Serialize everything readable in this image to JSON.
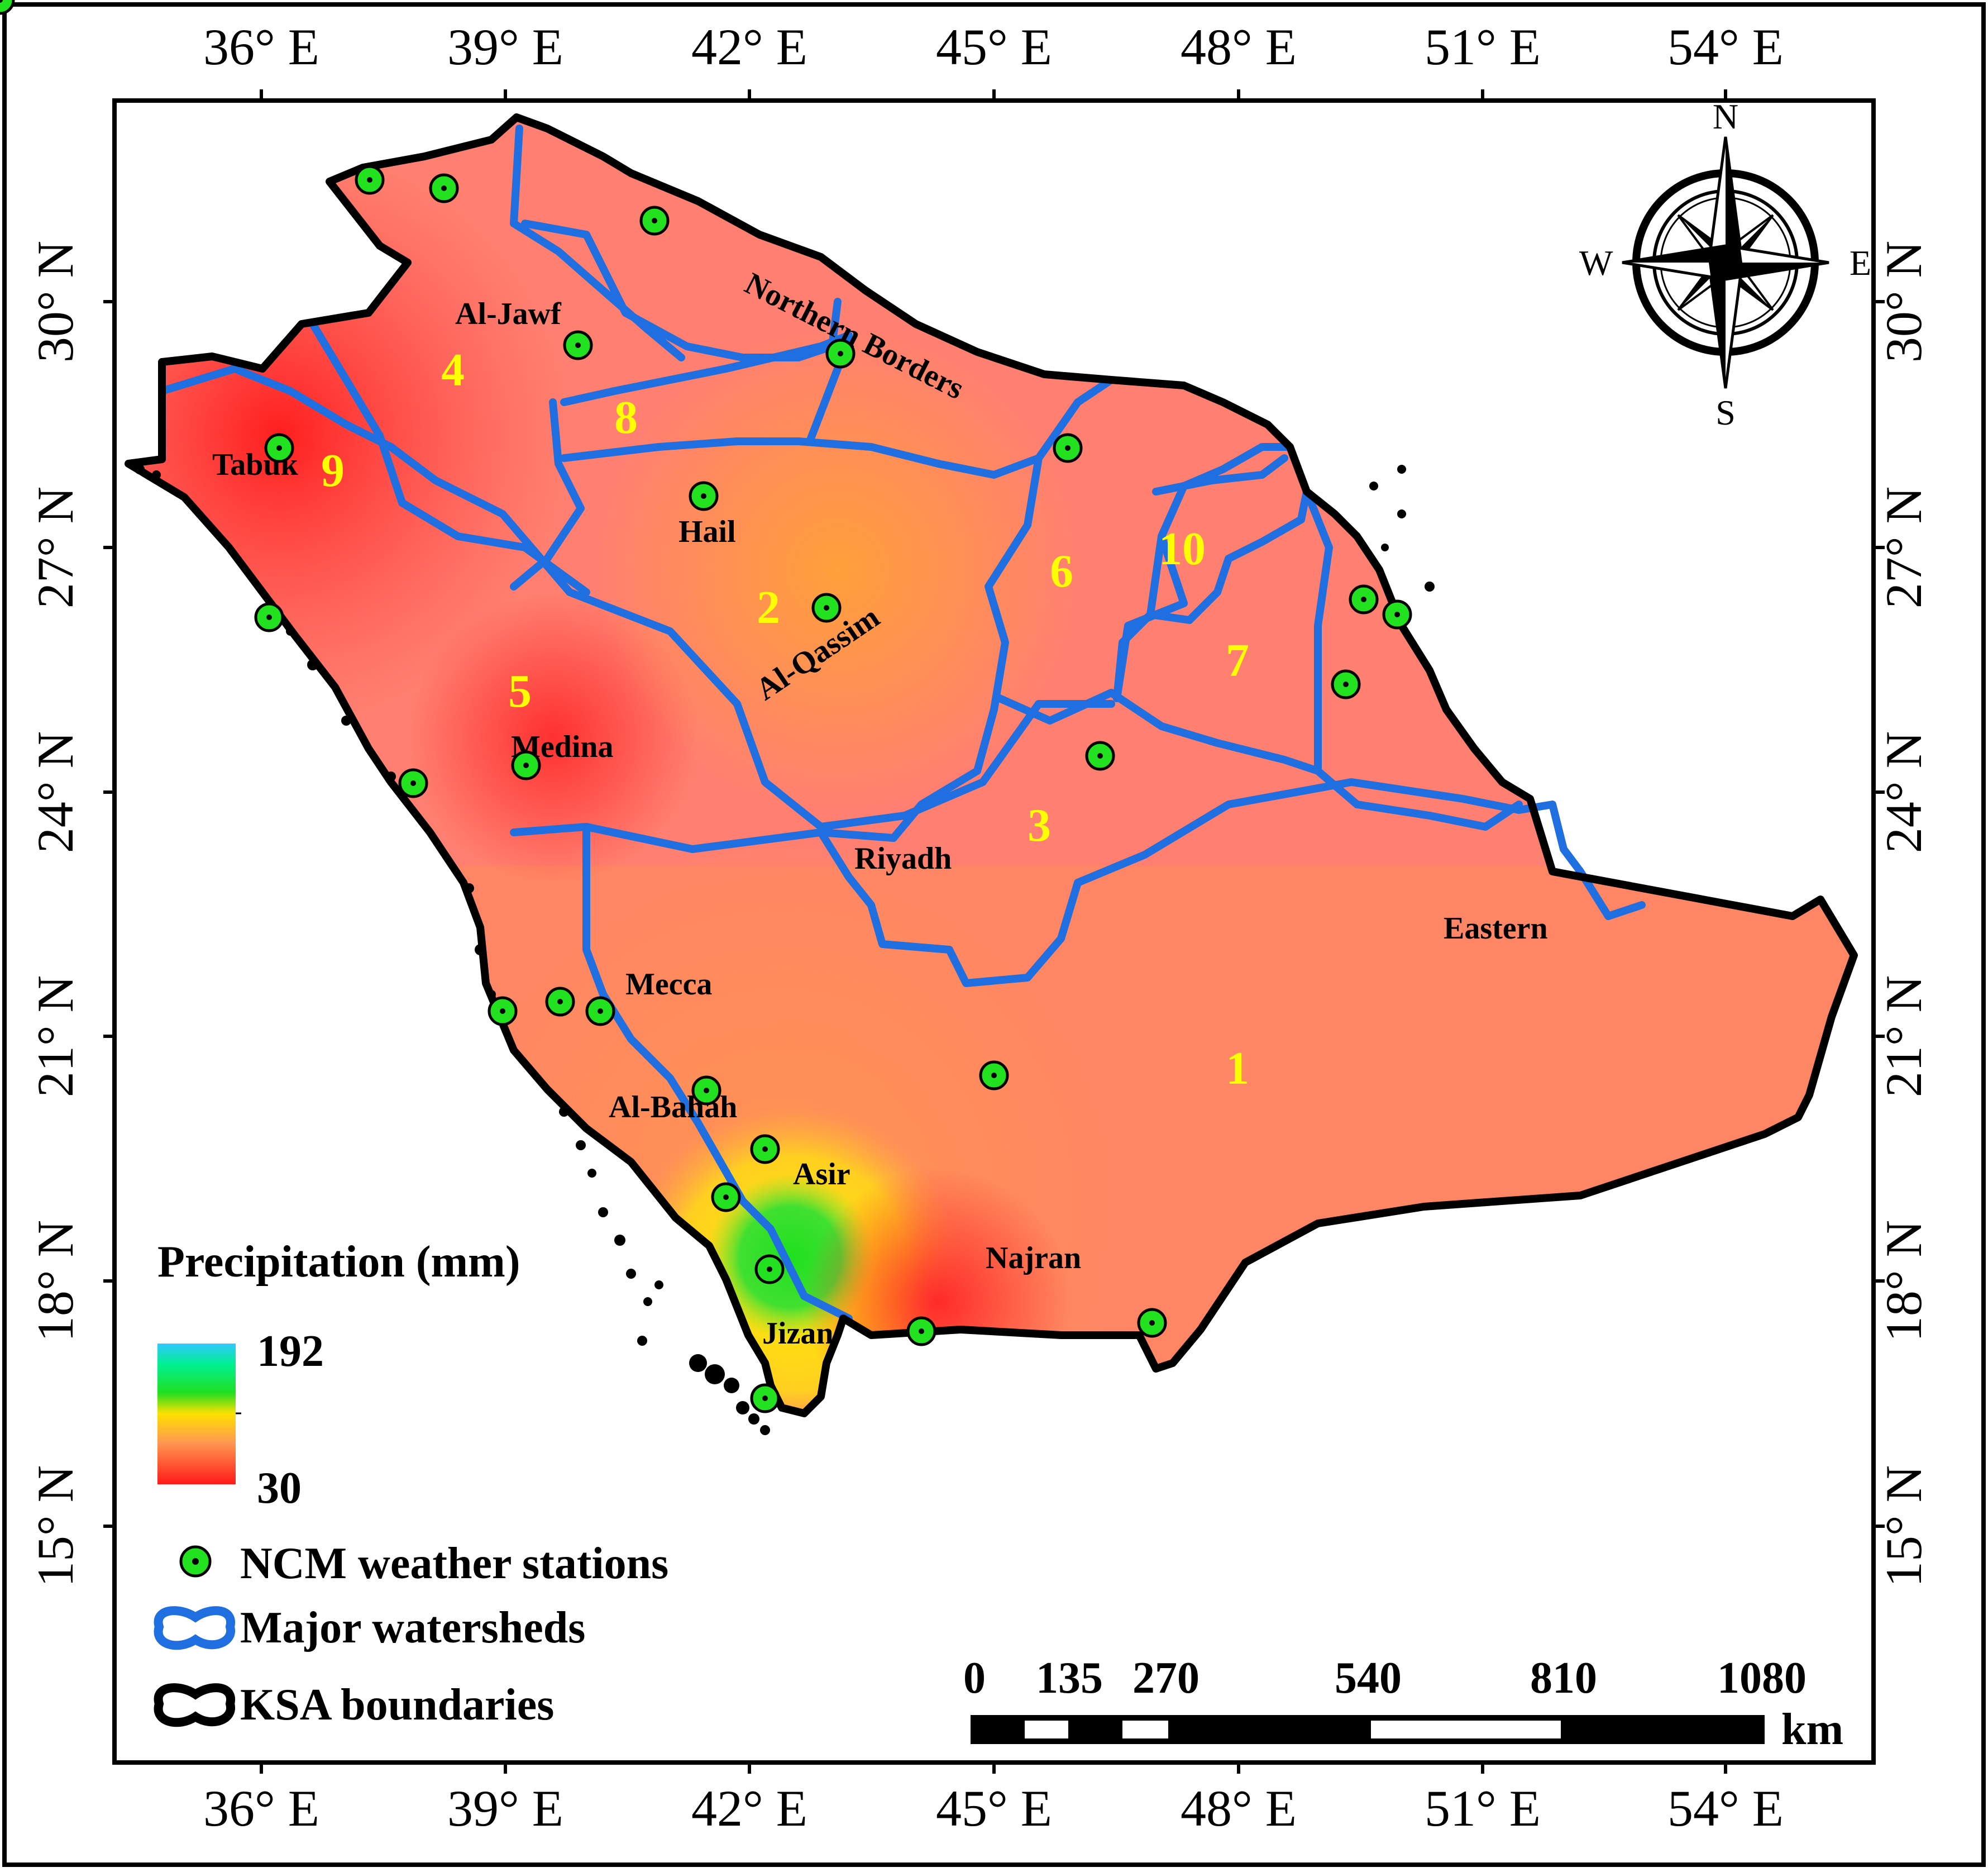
{
  "map": {
    "lon_ticks": [
      "36° E",
      "39° E",
      "42° E",
      "45° E",
      "48° E",
      "51° E",
      "54° E"
    ],
    "lat_ticks": [
      "30° N",
      "27° N",
      "24° N",
      "21° N",
      "18° N",
      "15° N"
    ],
    "regions": [
      "Al-Jawf",
      "Northern Borders",
      "Tabuk",
      "Hail",
      "Al-Qassim",
      "Medina",
      "Riyadh",
      "Eastern",
      "Mecca",
      "Al-Bahah",
      "Asir",
      "Najran",
      "Jizan"
    ],
    "watershed_numbers": [
      "1",
      "2",
      "3",
      "4",
      "5",
      "6",
      "7",
      "8",
      "9",
      "10"
    ],
    "compass": {
      "n": "N",
      "s": "S",
      "e": "E",
      "w": "W"
    }
  },
  "legend": {
    "title": "Precipitation (mm)",
    "max": "192",
    "min": "30",
    "stations": "NCM weather stations",
    "watersheds": "Major watersheds",
    "boundaries": "KSA boundaries"
  },
  "scalebar": {
    "labels": [
      "0",
      "135",
      "270",
      "540",
      "810",
      "1080"
    ],
    "unit": "km"
  },
  "colors": {
    "boundary": "#000000",
    "watershed": "#1f6fe0",
    "station": "#22e21f",
    "label_yellow": "#ffff00"
  }
}
